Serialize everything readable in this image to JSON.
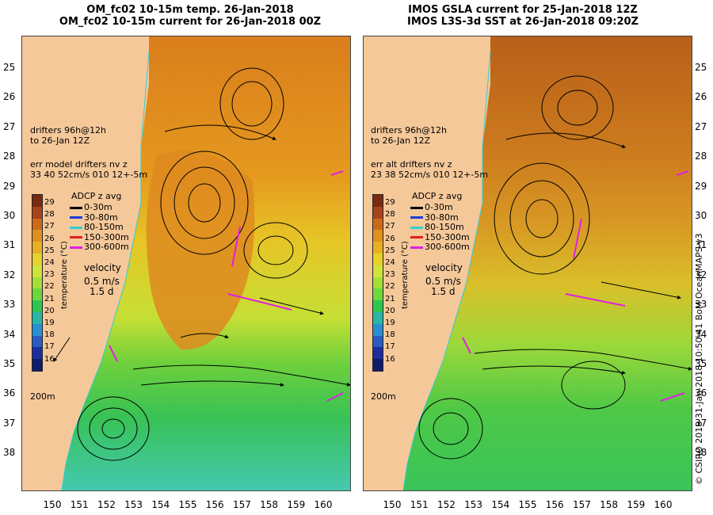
{
  "left": {
    "title1": "OM_fc02 10-15m temp. 26-Jan-2018",
    "title2": "OM_fc02 10-15m current for 26-Jan-2018 00Z",
    "drifters": [
      "drifters 96h@12h",
      "to 26-Jan 12Z",
      "err model drifters nv z",
      "33 40 52cm/s 010 12+-5m"
    ]
  },
  "right": {
    "title1": "IMOS GSLA current for 25-Jan-2018 12Z",
    "title2": "IMOS L3S-3d SST at 26-Jan-2018 09:20Z",
    "drifters": [
      "drifters 96h@12h",
      "to 26-Jan 12Z",
      "err alt drifters nv z",
      "23 38 52cm/s 010 12+-5m"
    ]
  },
  "lat_ticks": [
    "25",
    "26",
    "27",
    "28",
    "29",
    "30",
    "31",
    "32",
    "33",
    "34",
    "35",
    "36",
    "37",
    "38"
  ],
  "lon_ticks": [
    "150",
    "151",
    "152",
    "153",
    "154",
    "155",
    "156",
    "157",
    "158",
    "159",
    "160"
  ],
  "colorbar": {
    "labels": [
      "29",
      "28",
      "27",
      "26",
      "25",
      "24",
      "23",
      "22",
      "21",
      "20",
      "19",
      "18",
      "17",
      "16"
    ],
    "axis_label": "temperature (°C)",
    "colors": [
      "#7a2a10",
      "#a8431a",
      "#cc6a1a",
      "#e0901f",
      "#e8b020",
      "#e6d22a",
      "#cfe33a",
      "#a6de38",
      "#6bd83c",
      "#2fc64f",
      "#2ab6a6",
      "#2a8fd0",
      "#2a5cc0",
      "#1c2f9c",
      "#101c6a"
    ]
  },
  "adcp_legend": {
    "title": "ADCP z avg",
    "items": [
      {
        "label": "0-30m",
        "color": "#000000"
      },
      {
        "label": "30-80m",
        "color": "#1a3cd8"
      },
      {
        "label": "80-150m",
        "color": "#30d0d0"
      },
      {
        "label": "150-300m",
        "color": "#e02020"
      },
      {
        "label": "300-600m",
        "color": "#e020e0"
      }
    ]
  },
  "velocity": {
    "line1": "velocity",
    "line2": "0.5 m/s",
    "line3": "1.5 d"
  },
  "depth_label": "200m",
  "credit": "© CSIRO 2018   31-Jan-2018 10:50:41 BoM OceanMAPS v3",
  "colors": {
    "land": "#f5c89a",
    "coast": "#2ad0d0",
    "drifter": "#e020e0"
  }
}
